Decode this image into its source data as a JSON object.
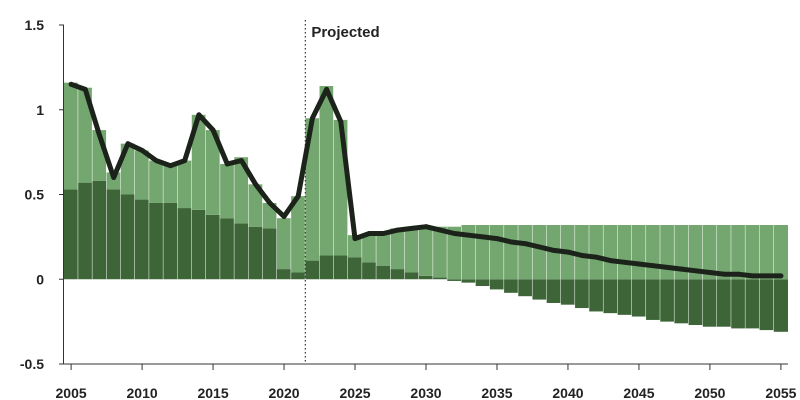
{
  "chart_data": {
    "type": "bar",
    "title": "",
    "xlabel": "",
    "ylabel": "",
    "xlim": [
      2005,
      2055
    ],
    "ylim": [
      -0.5,
      1.5
    ],
    "yticks": [
      1.5,
      1,
      0.5,
      0,
      -0.5
    ],
    "ytick_labels": [
      "1.5",
      "1",
      "0.5",
      "0",
      "-0.5"
    ],
    "xticks": [
      2005,
      2010,
      2015,
      2020,
      2025,
      2030,
      2035,
      2040,
      2045,
      2050,
      2055
    ],
    "xtick_labels": [
      "2005",
      "2010",
      "2015",
      "2020",
      "2025",
      "2030",
      "2035",
      "2040",
      "2045",
      "2050",
      "2055"
    ],
    "projection_start": 2021.5,
    "annotation": "Projected",
    "grid": false,
    "legend": "none",
    "colors": {
      "light": "#74a76f",
      "dark": "#3d6538",
      "line": "#1c231b",
      "divider": "#ffffff"
    },
    "x": [
      2005,
      2006,
      2007,
      2008,
      2009,
      2010,
      2011,
      2012,
      2013,
      2014,
      2015,
      2016,
      2017,
      2018,
      2019,
      2020,
      2021,
      2022,
      2023,
      2024,
      2025,
      2026,
      2027,
      2028,
      2029,
      2030,
      2031,
      2032,
      2033,
      2034,
      2035,
      2036,
      2037,
      2038,
      2039,
      2040,
      2041,
      2042,
      2043,
      2044,
      2045,
      2046,
      2047,
      2048,
      2049,
      2050,
      2051,
      2052,
      2053,
      2054,
      2055
    ],
    "series": [
      {
        "type": "bar",
        "color": "#3d6538",
        "values": [
          0.53,
          0.57,
          0.58,
          0.53,
          0.5,
          0.47,
          0.45,
          0.45,
          0.42,
          0.41,
          0.38,
          0.36,
          0.33,
          0.31,
          0.3,
          0.06,
          0.04,
          0.11,
          0.14,
          0.14,
          0.13,
          0.1,
          0.08,
          0.06,
          0.04,
          0.02,
          0.01,
          -0.01,
          -0.02,
          -0.04,
          -0.06,
          -0.08,
          -0.1,
          -0.12,
          -0.14,
          -0.15,
          -0.17,
          -0.19,
          -0.2,
          -0.21,
          -0.22,
          -0.24,
          -0.25,
          -0.26,
          -0.27,
          -0.28,
          -0.28,
          -0.29,
          -0.29,
          -0.3,
          -0.31
        ]
      },
      {
        "type": "bar",
        "color": "#74a76f",
        "values": [
          0.63,
          0.56,
          0.3,
          0.1,
          0.3,
          0.29,
          0.25,
          0.22,
          0.28,
          0.56,
          0.5,
          0.32,
          0.39,
          0.25,
          0.15,
          0.3,
          0.45,
          0.84,
          1.0,
          0.8,
          0.13,
          0.17,
          0.19,
          0.24,
          0.27,
          0.29,
          0.3,
          0.31,
          0.32,
          0.32,
          0.32,
          0.32,
          0.32,
          0.32,
          0.32,
          0.32,
          0.32,
          0.32,
          0.32,
          0.32,
          0.32,
          0.32,
          0.32,
          0.32,
          0.32,
          0.32,
          0.32,
          0.32,
          0.32,
          0.32,
          0.32
        ]
      },
      {
        "type": "line",
        "color": "#1c231b",
        "values": [
          1.15,
          1.12,
          0.85,
          0.6,
          0.8,
          0.76,
          0.7,
          0.67,
          0.7,
          0.97,
          0.88,
          0.68,
          0.7,
          0.56,
          0.45,
          0.37,
          0.49,
          0.95,
          1.12,
          0.93,
          0.24,
          0.27,
          0.27,
          0.29,
          0.3,
          0.31,
          0.29,
          0.27,
          0.26,
          0.25,
          0.24,
          0.22,
          0.21,
          0.19,
          0.17,
          0.16,
          0.14,
          0.13,
          0.11,
          0.1,
          0.09,
          0.08,
          0.07,
          0.06,
          0.05,
          0.04,
          0.03,
          0.03,
          0.02,
          0.02,
          0.02
        ]
      }
    ]
  }
}
